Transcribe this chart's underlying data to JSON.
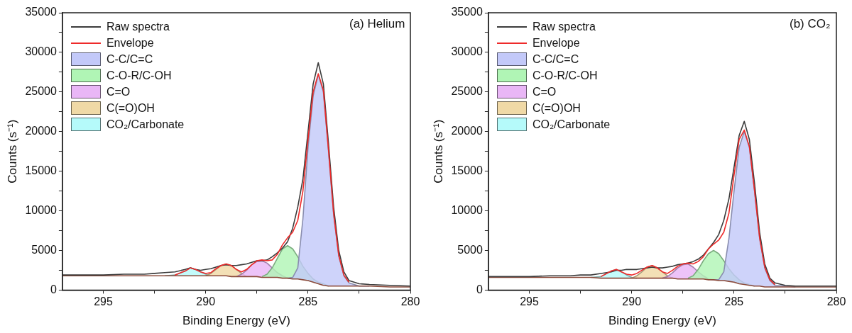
{
  "chart_data": [
    {
      "type": "line",
      "title": "(a) Helium",
      "xlabel": "Binding Energy (eV)",
      "ylabel": "Counts (s⁻¹)",
      "x": [
        297,
        296,
        295,
        294,
        293,
        292.5,
        292,
        291.5,
        291,
        290.75,
        290.5,
        290.25,
        290,
        289.75,
        289.5,
        289.25,
        289,
        288.75,
        288.5,
        288.25,
        288,
        287.75,
        287.5,
        287.25,
        287,
        286.75,
        286.5,
        286.25,
        286,
        285.75,
        285.5,
        285.25,
        285,
        284.75,
        284.5,
        284.25,
        284,
        283.75,
        283.5,
        283.25,
        283,
        282.5,
        282,
        281,
        280
      ],
      "xlim": [
        297,
        280
      ],
      "xticks": [
        295,
        {
          "value": 292.5,
          "label": null
        },
        290,
        {
          "value": 287.5,
          "label": null
        },
        285,
        {
          "value": 282.5,
          "label": null
        },
        280
      ],
      "ylim": [
        0,
        35000
      ],
      "yticks": [
        0,
        {
          "value": 2500,
          "label": null
        },
        5000,
        {
          "value": 7500,
          "label": null
        },
        10000,
        {
          "value": 12500,
          "label": null
        },
        15000,
        {
          "value": 17500,
          "label": null
        },
        20000,
        {
          "value": 22500,
          "label": null
        },
        25000,
        {
          "value": 27500,
          "label": null
        },
        30000,
        {
          "value": 32500,
          "label": null
        },
        35000
      ],
      "grid": false,
      "legend": "top left",
      "marker": "none",
      "series": [
        {
          "type": "line",
          "color": "#8b4a3a",
          "values": [
            1800,
            1800,
            1800,
            1800,
            1800,
            1800,
            1800,
            1800,
            1800,
            1800,
            1800,
            1800,
            1800,
            1800,
            1800,
            1800,
            1800,
            1700,
            1700,
            1700,
            1700,
            1700,
            1700,
            1600,
            1600,
            1600,
            1600,
            1500,
            1500,
            1400,
            1400,
            1300,
            1200,
            1000,
            800,
            600,
            500,
            500,
            500,
            500,
            500,
            500,
            500,
            400,
            400
          ]
        },
        {
          "type": "line",
          "name": "Raw spectra",
          "color": "#3c3c3c",
          "values": [
            1900,
            1900,
            1900,
            2000,
            2000,
            2100,
            2200,
            2300,
            2600,
            2800,
            2600,
            2500,
            2600,
            2700,
            2900,
            3100,
            3200,
            3100,
            3100,
            3200,
            3300,
            3500,
            3700,
            3700,
            3800,
            4200,
            4700,
            5300,
            6100,
            7800,
            10500,
            14000,
            20000,
            26000,
            28700,
            26000,
            18500,
            10500,
            5000,
            2300,
            1200,
            800,
            700,
            600,
            500
          ]
        },
        {
          "type": "line",
          "name": "Envelope",
          "color": "#ee2a2a",
          "values": [
            null,
            null,
            null,
            null,
            null,
            null,
            null,
            1900,
            2400,
            2800,
            2600,
            2300,
            2100,
            2200,
            2700,
            3100,
            3300,
            3100,
            2600,
            2300,
            2600,
            3200,
            3700,
            3800,
            3700,
            3800,
            4500,
            5700,
            6600,
            7300,
            8800,
            12500,
            19000,
            25000,
            27300,
            25200,
            17700,
            9700,
            4400,
            1900,
            1000,
            null,
            null,
            null,
            null
          ]
        },
        {
          "type": "area",
          "name": "C-C/C=C",
          "color": "#c3c9f9",
          "values": [
            null,
            null,
            null,
            null,
            null,
            null,
            null,
            null,
            null,
            null,
            null,
            null,
            null,
            null,
            null,
            null,
            null,
            null,
            null,
            null,
            null,
            null,
            null,
            null,
            null,
            null,
            null,
            null,
            1500,
            1600,
            2800,
            9000,
            18000,
            24500,
            27200,
            25000,
            17500,
            9500,
            4300,
            1800,
            900,
            500,
            500,
            null,
            null
          ]
        },
        {
          "type": "area",
          "name": "C-O-R/C-OH",
          "color": "#b0f5b5",
          "values": [
            null,
            null,
            null,
            null,
            null,
            null,
            null,
            null,
            null,
            null,
            null,
            null,
            null,
            null,
            null,
            null,
            null,
            null,
            null,
            null,
            null,
            null,
            null,
            1700,
            2000,
            2800,
            4000,
            5200,
            5600,
            5200,
            4200,
            3000,
            2100,
            1400,
            1000,
            800,
            500,
            null,
            null,
            null,
            null,
            null,
            null,
            null,
            null
          ]
        },
        {
          "type": "area",
          "name": "C=O",
          "color": "#e9b6f6",
          "values": [
            null,
            null,
            null,
            null,
            null,
            null,
            null,
            null,
            null,
            null,
            null,
            null,
            null,
            null,
            null,
            null,
            null,
            null,
            1700,
            2000,
            2500,
            3200,
            3600,
            3700,
            3400,
            2800,
            2200,
            1800,
            1500,
            null,
            null,
            null,
            null,
            null,
            null,
            null,
            null,
            null,
            null,
            null,
            null,
            null,
            null,
            null,
            null
          ]
        },
        {
          "type": "area",
          "name": "C(=O)OH",
          "color": "#f0d9a6",
          "values": [
            null,
            null,
            null,
            null,
            null,
            null,
            null,
            null,
            null,
            null,
            null,
            null,
            1800,
            2100,
            2600,
            3100,
            3300,
            3100,
            2600,
            2100,
            1700,
            null,
            null,
            null,
            null,
            null,
            null,
            null,
            null,
            null,
            null,
            null,
            null,
            null,
            null,
            null,
            null,
            null,
            null,
            null,
            null,
            null,
            null,
            null,
            null
          ]
        },
        {
          "type": "area",
          "name": "CO₂/Carbonate",
          "color": "#b5fafa",
          "values": [
            null,
            null,
            null,
            null,
            null,
            null,
            1800,
            1900,
            2400,
            2800,
            2600,
            2300,
            2000,
            1800,
            null,
            null,
            null,
            null,
            null,
            null,
            null,
            null,
            null,
            null,
            null,
            null,
            null,
            null,
            null,
            null,
            null,
            null,
            null,
            null,
            null,
            null,
            null,
            null,
            null,
            null,
            null,
            null,
            null,
            null,
            null
          ]
        }
      ]
    },
    {
      "type": "line",
      "title": "(b) CO₂",
      "xlabel": "Binding Energy (eV)",
      "ylabel": "Counts (s⁻¹)",
      "x": [
        297,
        296,
        295,
        294,
        293,
        292.5,
        292,
        291.5,
        291,
        290.75,
        290.5,
        290.25,
        290,
        289.75,
        289.5,
        289.25,
        289,
        288.75,
        288.5,
        288.25,
        288,
        287.75,
        287.5,
        287.25,
        287,
        286.75,
        286.5,
        286.25,
        286,
        285.75,
        285.5,
        285.25,
        285,
        284.75,
        284.5,
        284.25,
        284,
        283.75,
        283.5,
        283.25,
        283,
        282.5,
        282,
        281,
        280
      ],
      "xlim": [
        297,
        280
      ],
      "xticks": [
        295,
        {
          "value": 292.5,
          "label": null
        },
        290,
        {
          "value": 287.5,
          "label": null
        },
        285,
        {
          "value": 282.5,
          "label": null
        },
        280
      ],
      "ylim": [
        0,
        35000
      ],
      "yticks": [
        0,
        {
          "value": 2500,
          "label": null
        },
        5000,
        {
          "value": 7500,
          "label": null
        },
        10000,
        {
          "value": 12500,
          "label": null
        },
        15000,
        {
          "value": 17500,
          "label": null
        },
        20000,
        {
          "value": 22500,
          "label": null
        },
        25000,
        {
          "value": 27500,
          "label": null
        },
        30000,
        {
          "value": 32500,
          "label": null
        },
        35000
      ],
      "grid": false,
      "legend": "top left",
      "marker": "none",
      "series": [
        {
          "type": "line",
          "color": "#8b4a3a",
          "values": [
            1600,
            1600,
            1600,
            1600,
            1600,
            1600,
            1600,
            1500,
            1500,
            1500,
            1500,
            1500,
            1500,
            1500,
            1500,
            1500,
            1500,
            1500,
            1500,
            1500,
            1500,
            1400,
            1400,
            1400,
            1400,
            1400,
            1400,
            1300,
            1300,
            1200,
            1200,
            1100,
            1000,
            800,
            700,
            600,
            500,
            500,
            400,
            400,
            400,
            400,
            400,
            400,
            400
          ]
        },
        {
          "type": "line",
          "name": "Raw spectra",
          "color": "#3c3c3c",
          "values": [
            1700,
            1700,
            1700,
            1800,
            1800,
            1900,
            1900,
            2100,
            2300,
            2500,
            2500,
            2600,
            2600,
            2600,
            2700,
            2800,
            2900,
            2800,
            2800,
            2900,
            3000,
            3200,
            3300,
            3400,
            3600,
            3900,
            4400,
            5200,
            6000,
            7000,
            8800,
            11500,
            15500,
            19500,
            21300,
            19000,
            13500,
            7300,
            3300,
            1500,
            900,
            600,
            500,
            500,
            500
          ]
        },
        {
          "type": "line",
          "name": "Envelope",
          "color": "#ee2a2a",
          "values": [
            null,
            null,
            null,
            null,
            null,
            null,
            null,
            1700,
            2400,
            2600,
            2300,
            2000,
            1900,
            2100,
            2500,
            2900,
            3100,
            2800,
            2300,
            2100,
            2500,
            3000,
            3300,
            3400,
            3300,
            3600,
            4200,
            5200,
            5800,
            6300,
            7300,
            9700,
            14500,
            19000,
            20200,
            18100,
            12600,
            6600,
            2900,
            1300,
            700,
            null,
            null,
            null,
            null
          ]
        },
        {
          "type": "area",
          "name": "C-C/C=C",
          "color": "#c3c9f9",
          "values": [
            null,
            null,
            null,
            null,
            null,
            null,
            null,
            null,
            null,
            null,
            null,
            null,
            null,
            null,
            null,
            null,
            null,
            null,
            null,
            null,
            null,
            null,
            null,
            null,
            null,
            null,
            null,
            null,
            1300,
            1300,
            2300,
            6500,
            12500,
            18000,
            20000,
            18000,
            12500,
            6500,
            2800,
            1200,
            600,
            500,
            400,
            null,
            null
          ]
        },
        {
          "type": "area",
          "name": "C-O-R/C-OH",
          "color": "#b0f5b5",
          "values": [
            null,
            null,
            null,
            null,
            null,
            null,
            null,
            null,
            null,
            null,
            null,
            null,
            null,
            null,
            null,
            null,
            null,
            null,
            null,
            null,
            null,
            null,
            null,
            1500,
            1800,
            2600,
            3700,
            4600,
            5000,
            4600,
            3700,
            2700,
            1900,
            1300,
            900,
            700,
            500,
            null,
            null,
            null,
            null,
            null,
            null,
            null,
            null
          ]
        },
        {
          "type": "area",
          "name": "C=O",
          "color": "#e9b6f6",
          "values": [
            null,
            null,
            null,
            null,
            null,
            null,
            null,
            null,
            null,
            null,
            null,
            null,
            null,
            null,
            null,
            null,
            null,
            null,
            1500,
            1700,
            2200,
            2800,
            3200,
            3300,
            2900,
            2300,
            1800,
            1400,
            1300,
            null,
            null,
            null,
            null,
            null,
            null,
            null,
            null,
            null,
            null,
            null,
            null,
            null,
            null,
            null,
            null
          ]
        },
        {
          "type": "area",
          "name": "C(=O)OH",
          "color": "#f0d9a6",
          "values": [
            null,
            null,
            null,
            null,
            null,
            null,
            null,
            null,
            null,
            null,
            null,
            null,
            1500,
            1800,
            2300,
            2900,
            3100,
            2800,
            2300,
            1800,
            1500,
            null,
            null,
            null,
            null,
            null,
            null,
            null,
            null,
            null,
            null,
            null,
            null,
            null,
            null,
            null,
            null,
            null,
            null,
            null,
            null,
            null,
            null,
            null,
            null
          ]
        },
        {
          "type": "area",
          "name": "CO₂/Carbonate",
          "color": "#b5fafa",
          "values": [
            null,
            null,
            null,
            null,
            null,
            null,
            1600,
            1700,
            2400,
            2600,
            2300,
            1900,
            1600,
            1500,
            null,
            null,
            null,
            null,
            null,
            null,
            null,
            null,
            null,
            null,
            null,
            null,
            null,
            null,
            null,
            null,
            null,
            null,
            null,
            null,
            null,
            null,
            null,
            null,
            null,
            null,
            null,
            null,
            null,
            null,
            null
          ]
        }
      ]
    }
  ]
}
